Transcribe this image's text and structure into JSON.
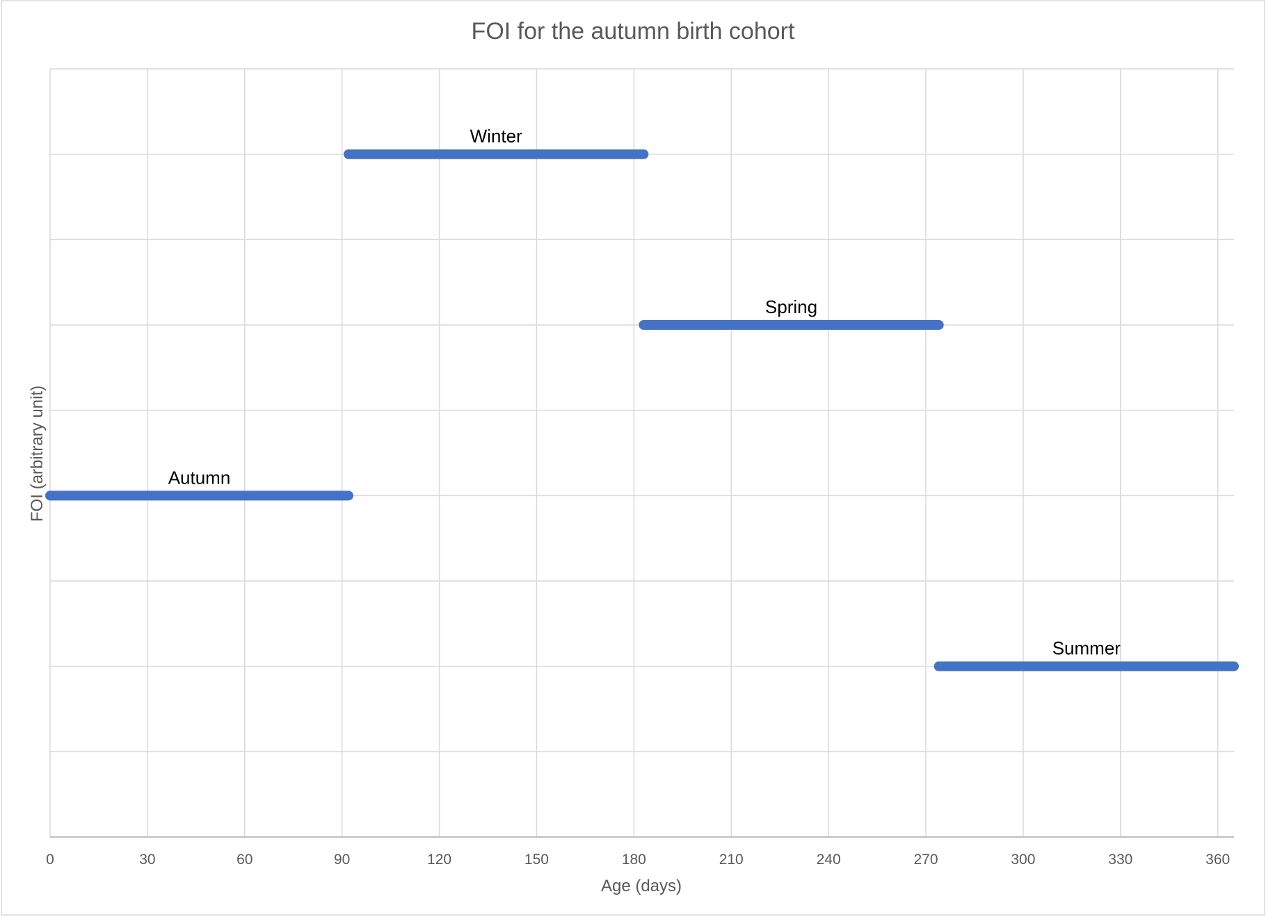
{
  "chart_data": {
    "type": "line",
    "title": "FOI for the autumn birth cohort",
    "xlabel": "Age (days)",
    "ylabel": "FOI (arbitrary unit)",
    "xlim": [
      0,
      365
    ],
    "x_ticks": [
      0,
      30,
      60,
      90,
      120,
      150,
      180,
      210,
      240,
      270,
      300,
      330,
      360
    ],
    "ylim": [
      0,
      9
    ],
    "y_gridlines": [
      0,
      1,
      2,
      3,
      4,
      5,
      6,
      7,
      8,
      9
    ],
    "y_tick_labels_shown": false,
    "grid": true,
    "legend": "none",
    "series_color": "#4472C4",
    "series": [
      {
        "name": "Autumn",
        "x": [
          0,
          92
        ],
        "y": [
          4,
          4
        ]
      },
      {
        "name": "Winter",
        "x": [
          92,
          183
        ],
        "y": [
          8,
          8
        ]
      },
      {
        "name": "Spring",
        "x": [
          183,
          274
        ],
        "y": [
          6,
          6
        ]
      },
      {
        "name": "Summer",
        "x": [
          274,
          365
        ],
        "y": [
          2,
          2
        ]
      }
    ]
  }
}
